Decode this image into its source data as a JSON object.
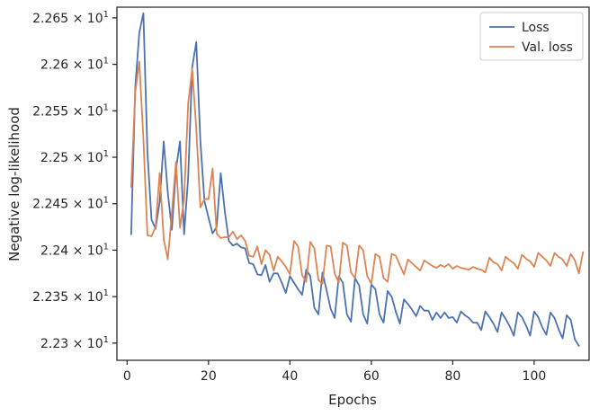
{
  "chart_data": {
    "type": "line",
    "xlabel": "Epochs",
    "ylabel": "Negative log-likelihood",
    "xlim": [
      -2.5,
      113.5
    ],
    "ylim": [
      22.2815,
      22.6615
    ],
    "xticks": [
      0,
      20,
      40,
      60,
      80,
      100
    ],
    "yticks": [
      {
        "value": 22.3,
        "mantissa": "2.23",
        "exp": "1"
      },
      {
        "value": 22.35,
        "mantissa": "2.235",
        "exp": "1"
      },
      {
        "value": 22.4,
        "mantissa": "2.24",
        "exp": "1"
      },
      {
        "value": 22.45,
        "mantissa": "2.245",
        "exp": "1"
      },
      {
        "value": 22.5,
        "mantissa": "2.25",
        "exp": "1"
      },
      {
        "value": 22.55,
        "mantissa": "2.255",
        "exp": "1"
      },
      {
        "value": 22.6,
        "mantissa": "2.26",
        "exp": "1"
      },
      {
        "value": 22.65,
        "mantissa": "2.265",
        "exp": "1"
      }
    ],
    "tick_multiply_sign": "×",
    "tick_base": "10",
    "grid": false,
    "legend_position": "top-right",
    "series": [
      {
        "name": "Loss",
        "color": "#4c72b0",
        "values": [
          22.417,
          22.575,
          22.634,
          22.655,
          22.505,
          22.433,
          22.423,
          22.452,
          22.517,
          22.462,
          22.422,
          22.487,
          22.517,
          22.417,
          22.478,
          22.597,
          22.624,
          22.518,
          22.453,
          22.435,
          22.418,
          22.425,
          22.483,
          22.442,
          22.41,
          22.405,
          22.407,
          22.403,
          22.402,
          22.386,
          22.385,
          22.374,
          22.373,
          22.384,
          22.366,
          22.375,
          22.375,
          22.365,
          22.354,
          22.372,
          22.365,
          22.358,
          22.352,
          22.379,
          22.372,
          22.338,
          22.331,
          22.376,
          22.357,
          22.337,
          22.327,
          22.372,
          22.365,
          22.331,
          22.323,
          22.37,
          22.362,
          22.331,
          22.321,
          22.363,
          22.358,
          22.331,
          22.322,
          22.356,
          22.35,
          22.334,
          22.321,
          22.347,
          22.342,
          22.336,
          22.329,
          22.34,
          22.335,
          22.335,
          22.325,
          22.333,
          22.327,
          22.333,
          22.327,
          22.328,
          22.322,
          22.334,
          22.33,
          22.327,
          22.322,
          22.322,
          22.314,
          22.334,
          22.328,
          22.321,
          22.312,
          22.333,
          22.326,
          22.318,
          22.308,
          22.333,
          22.328,
          22.319,
          22.308,
          22.334,
          22.328,
          22.317,
          22.309,
          22.333,
          22.327,
          22.315,
          22.305,
          22.33,
          22.325,
          22.304,
          22.297
        ]
      },
      {
        "name": "Val. loss",
        "color": "#dd8452",
        "values": [
          22.468,
          22.57,
          22.603,
          22.52,
          22.416,
          22.415,
          22.425,
          22.483,
          22.412,
          22.39,
          22.44,
          22.495,
          22.424,
          22.455,
          22.558,
          22.595,
          22.53,
          22.446,
          22.455,
          22.455,
          22.488,
          22.418,
          22.413,
          22.414,
          22.414,
          22.42,
          22.412,
          22.416,
          22.41,
          22.394,
          22.393,
          22.404,
          22.385,
          22.4,
          22.395,
          22.378,
          22.393,
          22.388,
          22.382,
          22.374,
          22.41,
          22.404,
          22.373,
          22.366,
          22.409,
          22.402,
          22.368,
          22.364,
          22.405,
          22.404,
          22.375,
          22.365,
          22.408,
          22.405,
          22.376,
          22.37,
          22.405,
          22.4,
          22.372,
          22.364,
          22.396,
          22.393,
          22.37,
          22.366,
          22.396,
          22.394,
          22.384,
          22.374,
          22.39,
          22.386,
          22.382,
          22.378,
          22.389,
          22.386,
          22.383,
          22.381,
          22.384,
          22.382,
          22.385,
          22.38,
          22.383,
          22.381,
          22.38,
          22.379,
          22.382,
          22.38,
          22.379,
          22.376,
          22.392,
          22.387,
          22.385,
          22.378,
          22.393,
          22.389,
          22.386,
          22.38,
          22.395,
          22.391,
          22.388,
          22.382,
          22.397,
          22.393,
          22.389,
          22.383,
          22.397,
          22.393,
          22.39,
          22.383,
          22.396,
          22.389,
          22.375,
          22.398
        ]
      }
    ]
  }
}
